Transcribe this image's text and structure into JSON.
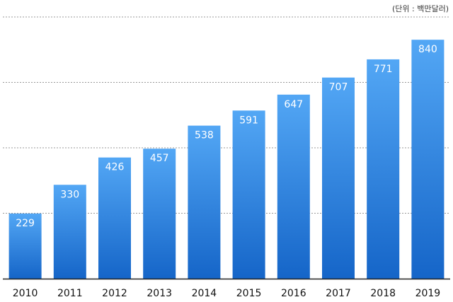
{
  "unit_note": "(단위 : 백만달러)",
  "colors": {
    "bar_top": "#53a7f5",
    "bar_bottom": "#1565c8",
    "grid": "#999999",
    "baseline": "#222222",
    "value_text": "#ffffff",
    "axis_text": "#111111"
  },
  "chart_data": {
    "type": "bar",
    "title": "",
    "xlabel": "",
    "ylabel": "",
    "unit": "(단위 : 백만달러)",
    "categories": [
      "2010",
      "2011",
      "2012",
      "2013",
      "2014",
      "2015",
      "2016",
      "2017",
      "2018",
      "2019"
    ],
    "values": [
      229,
      330,
      426,
      457,
      538,
      591,
      647,
      707,
      771,
      840
    ],
    "value_labels": [
      "229",
      "330",
      "426",
      "457",
      "538",
      "591",
      "647",
      "707",
      "771",
      "840"
    ],
    "ylim": [
      0,
      920
    ],
    "grid": true,
    "gridlines_at": [
      230,
      460,
      690,
      920
    ],
    "legend": "none"
  }
}
